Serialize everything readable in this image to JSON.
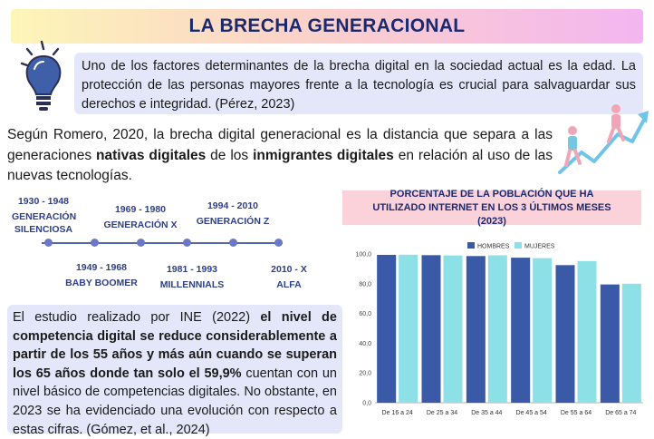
{
  "title": "LA BRECHA GENERACIONAL",
  "intro": "Uno de los factores determinantes de la brecha digital en la sociedad actual es la edad. La protección de las personas mayores frente a la tecnología es crucial para salvaguardar sus derechos e integridad. (Pérez, 2023)",
  "romero": {
    "p1": "Según Romero, 2020, la brecha digital generacional es la distancia que separa a las generaciones ",
    "b1": "nativas digitales",
    "p2": " de los ",
    "b2": "inmigrantes digitales",
    "p3": " en relación al uso de las nuevas tecnologías."
  },
  "timeline": [
    {
      "years": "1930 - 1948",
      "name": "GENERACIÓN SILENCIOSA"
    },
    {
      "years": "1949 - 1968",
      "name": "BABY BOOMER"
    },
    {
      "years": "1969 - 1980",
      "name": "GENERACIÓN X"
    },
    {
      "years": "1981 - 1993",
      "name": "MILLENNIALS"
    },
    {
      "years": "1994 - 2010",
      "name": "GENERACIÓN Z"
    },
    {
      "years": "2010 - X",
      "name": "ALFA"
    }
  ],
  "ine": {
    "p1": "El estudio realizado por INE (2022) ",
    "b1": "el nivel de competencia digital se reduce considerablemente a partir de los 55 años y más aún cuando se superan los 65 años donde tan solo el 59,9%",
    "p2": " cuentan con un nivel básico de competencias digitales. No obstante, en 2023 se ha evidenciado una evolución con respecto a estas cifras. (Gómez, et al., 2024)"
  },
  "chart_data": {
    "type": "bar",
    "title": "PORCENTAJE DE LA POBLACIÓN QUE HA UTILIZADO INTERNET EN LOS 3 ÚLTIMOS MESES (2023)",
    "categories": [
      "De 16 a 24",
      "De 25 a 34",
      "De 35 a 44",
      "De 45 a 54",
      "De 55 a 64",
      "De 65 a 74"
    ],
    "series": [
      {
        "name": "HOMBRES",
        "color": "#3a5aa8",
        "values": [
          99.4,
          99.2,
          98.6,
          97.5,
          92.5,
          79.5
        ]
      },
      {
        "name": "MUJERES",
        "color": "#8de0e6",
        "values": [
          99.5,
          99.0,
          99.1,
          97.2,
          95.2,
          80.0
        ]
      }
    ],
    "ylim": [
      0,
      100
    ],
    "yticks": [
      "0,0",
      "20,0",
      "40,0",
      "60,0",
      "80,0",
      "100,0"
    ],
    "legend": "top",
    "grid": false
  }
}
